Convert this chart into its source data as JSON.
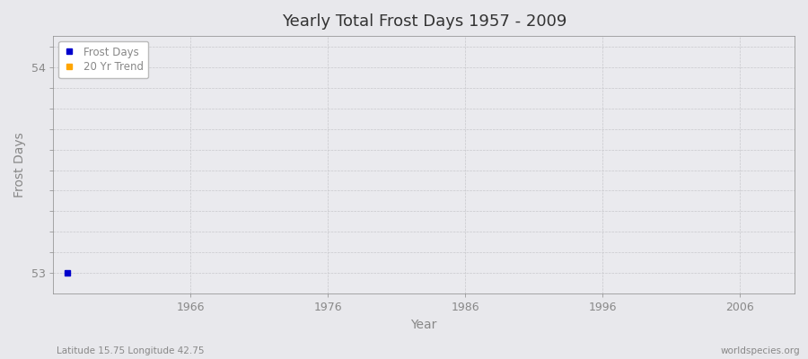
{
  "title": "Yearly Total Frost Days 1957 - 2009",
  "xlabel": "Year",
  "ylabel": "Frost Days",
  "subtitle": "Latitude 15.75 Longitude 42.75",
  "watermark": "worldspecies.org",
  "years": [
    1957
  ],
  "frost_days": [
    53
  ],
  "frost_color": "#0000cc",
  "trend_color": "#ffa500",
  "background_color": "#e8e8ec",
  "plot_bg_color": "#eaeaee",
  "grid_color": "#c8c8cc",
  "axis_color": "#888888",
  "text_color": "#888888",
  "title_color": "#333333",
  "xlim_min": 1957,
  "xlim_max": 2010,
  "ylim_min": 52.9,
  "ylim_max": 54.15,
  "xticks": [
    1966,
    1976,
    1986,
    1996,
    2006
  ],
  "ytick_positions": [
    53.0,
    53.1,
    53.2,
    53.3,
    53.4,
    53.5,
    53.6,
    53.7,
    53.8,
    53.9,
    54.0,
    54.1
  ],
  "legend_frost": "Frost Days",
  "legend_trend": "20 Yr Trend"
}
